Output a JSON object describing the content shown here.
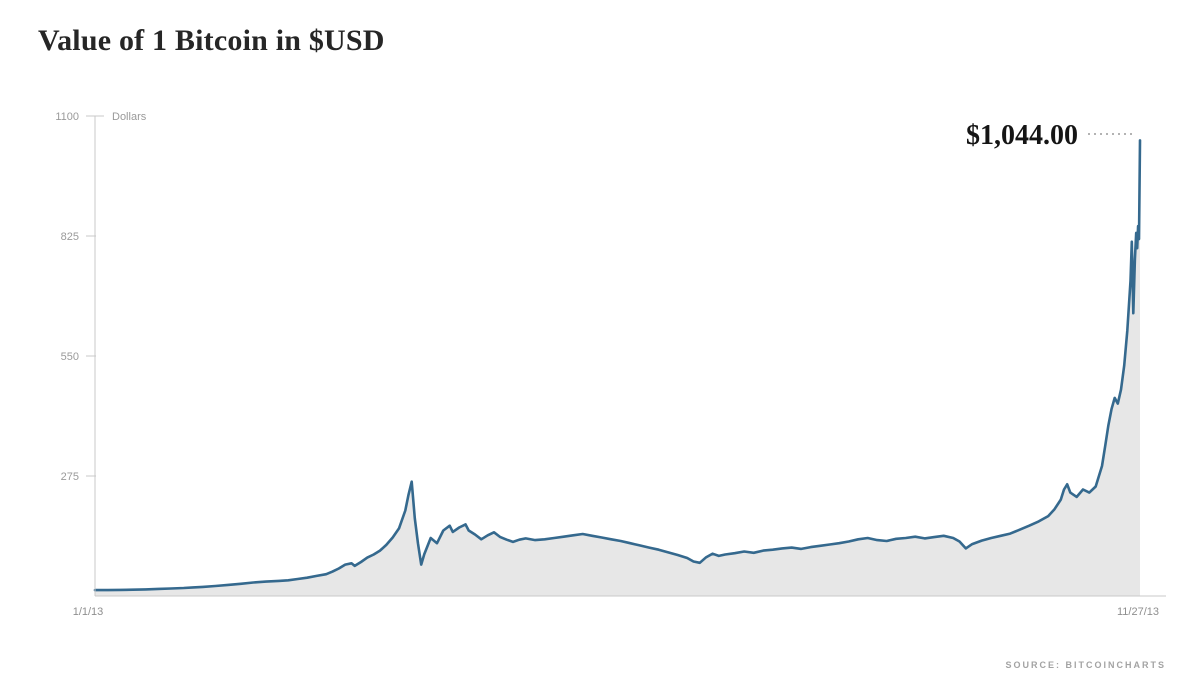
{
  "chart_data": {
    "type": "area",
    "title": "Value of 1 Bitcoin in $USD",
    "unit_label": "Dollars",
    "yticks": [
      275,
      550,
      825,
      1100
    ],
    "ylim": [
      0,
      1100
    ],
    "x_tick_labels": [
      "1/1/13",
      "11/27/13"
    ],
    "x_range_days": 330,
    "end_annotation": "$1,044.00",
    "source": "SOURCE: BITCOINCHARTS",
    "line_color": "#35698e",
    "fill_color": "#e7e7e7",
    "grid": "off",
    "legend": "none",
    "points": [
      [
        0,
        13.5
      ],
      [
        4,
        13.6
      ],
      [
        8,
        14.0
      ],
      [
        12,
        14.4
      ],
      [
        16,
        15.2
      ],
      [
        20,
        16.2
      ],
      [
        24,
        17.2
      ],
      [
        28,
        18.4
      ],
      [
        31,
        19.6
      ],
      [
        34,
        20.8
      ],
      [
        38,
        23
      ],
      [
        42,
        25.5
      ],
      [
        46,
        28
      ],
      [
        50,
        31
      ],
      [
        54,
        33
      ],
      [
        58,
        34.5
      ],
      [
        61,
        36
      ],
      [
        64,
        39
      ],
      [
        67,
        42
      ],
      [
        70,
        46
      ],
      [
        73,
        50
      ],
      [
        75,
        56
      ],
      [
        77,
        63
      ],
      [
        79,
        72
      ],
      [
        81,
        75
      ],
      [
        82,
        69
      ],
      [
        84,
        78
      ],
      [
        86,
        88
      ],
      [
        88,
        95
      ],
      [
        90,
        104
      ],
      [
        92,
        117
      ],
      [
        94,
        134
      ],
      [
        96,
        155
      ],
      [
        98,
        196
      ],
      [
        99,
        232
      ],
      [
        100,
        262
      ],
      [
        101,
        178
      ],
      [
        102,
        120
      ],
      [
        103,
        72
      ],
      [
        104,
        96
      ],
      [
        106,
        133
      ],
      [
        108,
        121
      ],
      [
        110,
        150
      ],
      [
        112,
        161
      ],
      [
        113,
        147
      ],
      [
        115,
        157
      ],
      [
        117,
        164
      ],
      [
        118,
        150
      ],
      [
        120,
        141
      ],
      [
        122,
        130
      ],
      [
        124,
        139
      ],
      [
        126,
        146
      ],
      [
        128,
        135
      ],
      [
        130,
        129
      ],
      [
        132,
        124
      ],
      [
        134,
        129
      ],
      [
        136,
        132
      ],
      [
        139,
        128
      ],
      [
        142,
        130
      ],
      [
        145,
        133
      ],
      [
        148,
        136
      ],
      [
        151,
        139
      ],
      [
        154,
        142
      ],
      [
        157,
        138
      ],
      [
        160,
        134
      ],
      [
        163,
        130
      ],
      [
        166,
        126
      ],
      [
        169,
        121
      ],
      [
        172,
        116
      ],
      [
        175,
        111
      ],
      [
        178,
        106
      ],
      [
        181,
        100
      ],
      [
        184,
        94
      ],
      [
        187,
        87
      ],
      [
        189,
        79
      ],
      [
        191,
        76
      ],
      [
        193,
        89
      ],
      [
        195,
        97
      ],
      [
        197,
        92
      ],
      [
        199,
        95
      ],
      [
        202,
        98
      ],
      [
        205,
        102
      ],
      [
        208,
        99
      ],
      [
        211,
        104
      ],
      [
        214,
        106
      ],
      [
        217,
        109
      ],
      [
        220,
        111
      ],
      [
        223,
        108
      ],
      [
        226,
        112
      ],
      [
        229,
        115
      ],
      [
        232,
        118
      ],
      [
        235,
        121
      ],
      [
        238,
        125
      ],
      [
        241,
        130
      ],
      [
        244,
        133
      ],
      [
        247,
        128
      ],
      [
        250,
        126
      ],
      [
        253,
        131
      ],
      [
        256,
        133
      ],
      [
        259,
        136
      ],
      [
        262,
        132
      ],
      [
        265,
        135
      ],
      [
        268,
        138
      ],
      [
        271,
        133
      ],
      [
        273,
        125
      ],
      [
        275,
        109
      ],
      [
        277,
        119
      ],
      [
        280,
        127
      ],
      [
        283,
        133
      ],
      [
        286,
        138
      ],
      [
        289,
        143
      ],
      [
        292,
        152
      ],
      [
        295,
        161
      ],
      [
        298,
        171
      ],
      [
        301,
        183
      ],
      [
        303,
        199
      ],
      [
        305,
        221
      ],
      [
        306,
        244
      ],
      [
        307,
        256
      ],
      [
        308,
        237
      ],
      [
        310,
        227
      ],
      [
        312,
        244
      ],
      [
        314,
        237
      ],
      [
        316,
        251
      ],
      [
        318,
        298
      ],
      [
        319,
        344
      ],
      [
        320,
        390
      ],
      [
        321,
        428
      ],
      [
        322,
        454
      ],
      [
        323,
        441
      ],
      [
        324,
        473
      ],
      [
        325,
        528
      ],
      [
        326,
        608
      ],
      [
        327,
        722
      ],
      [
        327.4,
        812
      ],
      [
        327.9,
        648
      ],
      [
        328.4,
        772
      ],
      [
        328.8,
        832
      ],
      [
        329.1,
        797
      ],
      [
        329.4,
        848
      ],
      [
        329.7,
        818
      ],
      [
        330,
        1044
      ]
    ]
  }
}
